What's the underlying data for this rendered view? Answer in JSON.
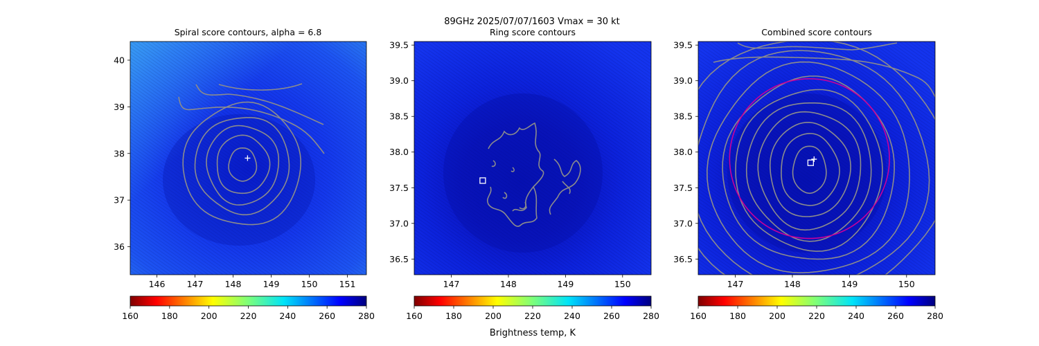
{
  "suptitle": "89GHz  2025/07/07/1603    Vmax = 30 kt",
  "colorbar": {
    "ticks": [
      160,
      180,
      200,
      220,
      240,
      260,
      280
    ],
    "label": "Brightness temp, K",
    "colormap": "jet_r"
  },
  "chart_data": [
    {
      "type": "heatmap",
      "title": "Spiral score contours, alpha =  6.8",
      "xlim": [
        145.3,
        151.5
      ],
      "ylim": [
        35.4,
        40.4
      ],
      "xticks": [
        146,
        147,
        148,
        149,
        150,
        151
      ],
      "yticks": [
        36,
        37,
        38,
        39,
        40
      ],
      "center": {
        "x": 148.25,
        "y": 37.7
      },
      "contours": {
        "color": "#8c8c8c",
        "count": 7
      },
      "marker_plus": {
        "x": 148.38,
        "y": 37.9
      },
      "background_temp_range_K": [
        245,
        275
      ]
    },
    {
      "type": "heatmap",
      "title": "Ring score contours",
      "xlim": [
        146.35,
        150.5
      ],
      "ylim": [
        36.28,
        39.55
      ],
      "xticks": [
        147,
        148,
        149,
        150
      ],
      "yticks": [
        36.5,
        37.0,
        37.5,
        38.0,
        38.5,
        39.0,
        39.5
      ],
      "contours": {
        "color": "#8c8c8c",
        "style": "irregular"
      },
      "marker_square": {
        "x": 147.55,
        "y": 37.6
      },
      "background_temp_range_K": [
        255,
        280
      ]
    },
    {
      "type": "heatmap",
      "title": "Combined score contours",
      "xlim": [
        146.35,
        150.5
      ],
      "ylim": [
        36.28,
        39.55
      ],
      "xticks": [
        147,
        148,
        149,
        150
      ],
      "yticks": [
        36.5,
        37.0,
        37.5,
        38.0,
        38.5,
        39.0,
        39.5
      ],
      "center": {
        "x": 148.3,
        "y": 37.75
      },
      "contours": {
        "color": "#8c8c8c",
        "count": 11
      },
      "ring_circle": {
        "x": 148.3,
        "y": 37.85,
        "radius_deg": 1.4,
        "color": "#c8009b"
      },
      "marker_square": {
        "x": 148.32,
        "y": 37.85
      },
      "marker_plus": {
        "x": 148.38,
        "y": 37.9
      },
      "background_temp_range_K": [
        255,
        280
      ]
    }
  ]
}
